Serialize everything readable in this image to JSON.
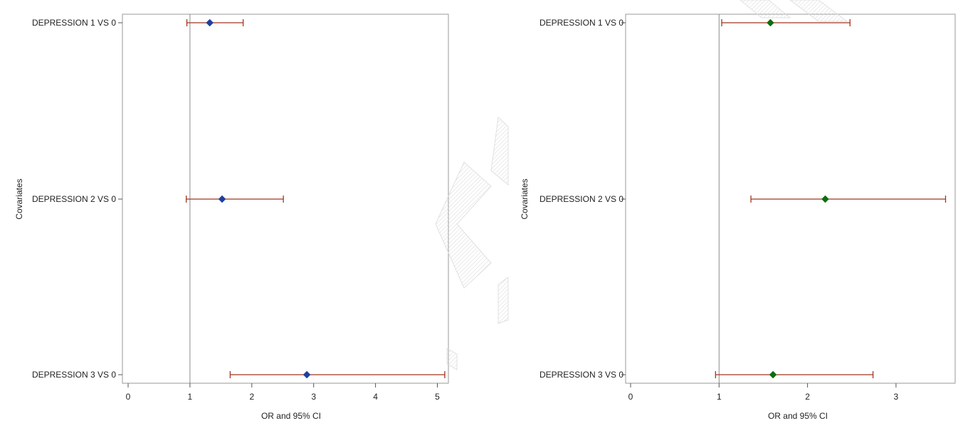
{
  "chart_data": [
    {
      "type": "scatter",
      "subtype": "forest-plot",
      "title": "",
      "xlabel": "OR and 95% CI",
      "ylabel": "Covariates",
      "xlim": [
        0,
        5.2
      ],
      "x_ticks": [
        "0",
        "1",
        "2",
        "3",
        "4",
        "5"
      ],
      "reference_line": 1,
      "categories": [
        "DEPRESSION 1 VS 0",
        "DEPRESSION 2 VS 0",
        "DEPRESSION 3 VS 0"
      ],
      "series": [
        {
          "values": [
            1.32,
            1.52,
            2.89
          ],
          "ci_lower": [
            0.95,
            0.94,
            1.65
          ],
          "ci_upper": [
            1.86,
            2.51,
            5.12
          ]
        }
      ],
      "marker_color": "#1f3f9e",
      "ci_color": "#a0361e",
      "grid": false
    },
    {
      "type": "scatter",
      "subtype": "forest-plot",
      "title": "",
      "xlabel": "OR and 95% CI",
      "ylabel": "Covariates",
      "xlim": [
        0,
        3.6
      ],
      "x_ticks": [
        "0",
        "1",
        "2",
        "3"
      ],
      "reference_line": 1,
      "categories": [
        "DEPRESSION 1 VS 0",
        "DEPRESSION 2 VS 0",
        "DEPRESSION 3 VS 0"
      ],
      "series": [
        {
          "values": [
            1.58,
            2.2,
            1.61
          ],
          "ci_lower": [
            1.03,
            1.36,
            0.96
          ],
          "ci_upper": [
            2.48,
            3.56,
            2.74
          ]
        }
      ],
      "marker_color": "#0b6e0b",
      "ci_color": "#a0361e",
      "grid": false
    }
  ]
}
